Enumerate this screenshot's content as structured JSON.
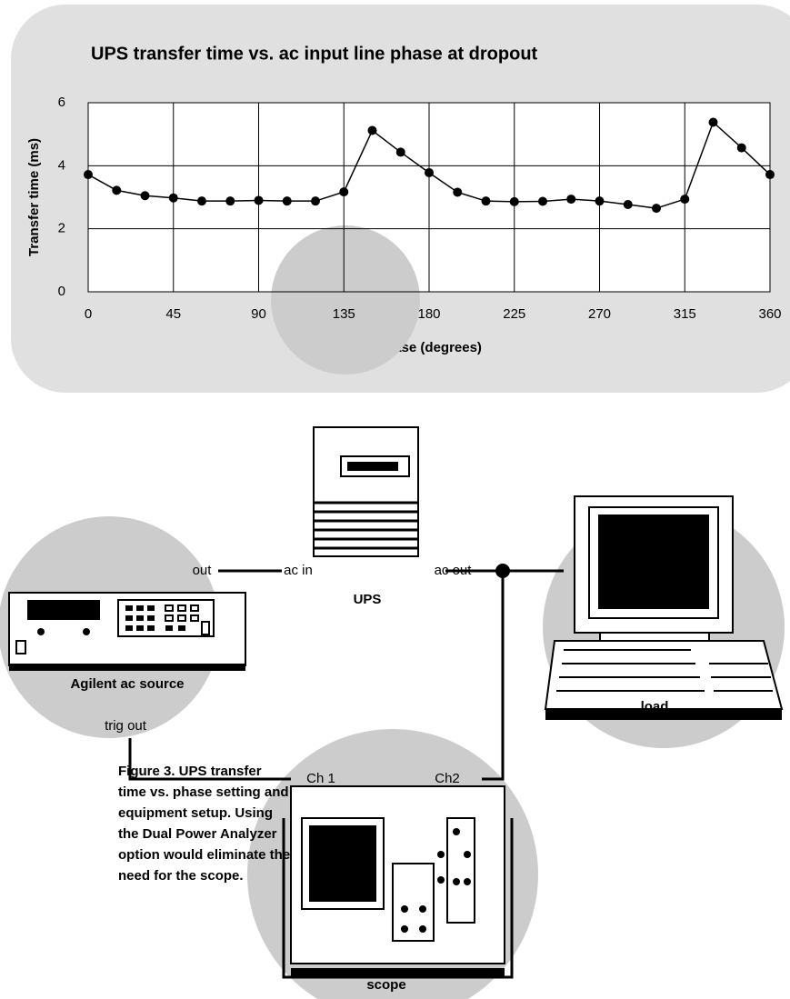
{
  "chart_data": {
    "type": "line",
    "title": "UPS transfer time vs. ac input line phase at dropout",
    "x_label": "Phase (degrees)",
    "y_label": "Transfer time (ms)",
    "x": [
      0,
      15,
      30,
      45,
      60,
      75,
      90,
      105,
      120,
      135,
      150,
      165,
      180,
      195,
      210,
      225,
      240,
      255,
      270,
      285,
      300,
      315,
      330,
      345,
      360
    ],
    "values": [
      3.72,
      3.22,
      3.05,
      2.98,
      2.88,
      2.88,
      2.9,
      2.88,
      2.88,
      3.17,
      5.12,
      4.43,
      3.78,
      3.16,
      2.88,
      2.86,
      2.87,
      2.94,
      2.88,
      2.77,
      2.65,
      2.94,
      5.38,
      4.57,
      3.72
    ],
    "color": "#000000",
    "xlim": [
      0,
      360
    ],
    "xticks": [
      0,
      45,
      90,
      135,
      180,
      225,
      270,
      315,
      360
    ],
    "ylim": [
      0,
      6
    ],
    "yticks": [
      0,
      2,
      4,
      6
    ],
    "grid": true
  },
  "diagram": {
    "labels": {
      "out": "out",
      "ac_in": "ac in",
      "ac_out": "ac out",
      "ups": "UPS",
      "source": "Agilent ac source",
      "trig_out": "trig out",
      "load": "load",
      "ch1": "Ch 1",
      "ch2": "Ch2",
      "scope": "scope"
    },
    "caption": [
      "Figure 3. UPS transfer",
      "time vs. phase setting and",
      "equipment setup. Using",
      "the Dual Power Analyzer",
      "option would eliminate the",
      "need for the scope."
    ]
  }
}
